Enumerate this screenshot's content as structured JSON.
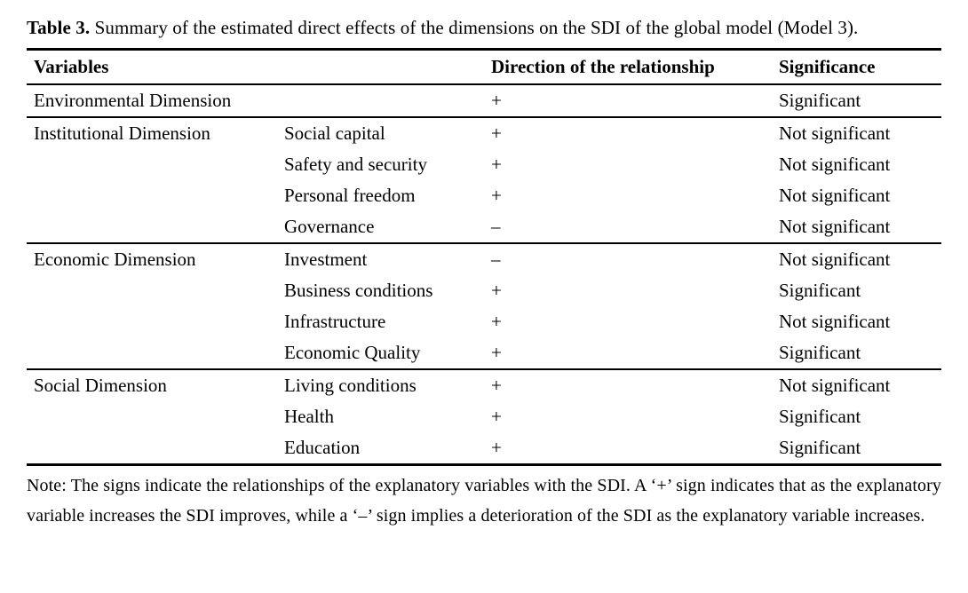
{
  "caption": {
    "label": "Table 3.",
    "text": "Summary of the estimated direct effects of the dimensions on the SDI of the global model (Model 3)."
  },
  "table": {
    "headers": {
      "variables": "Variables",
      "direction": "Direction of the relationship",
      "significance": "Significance"
    },
    "sections": [
      {
        "dimension": "Environmental Dimension",
        "rows": [
          {
            "variable": "",
            "direction": "+",
            "significance": "Significant"
          }
        ]
      },
      {
        "dimension": "Institutional Dimension",
        "rows": [
          {
            "variable": "Social capital",
            "direction": "+",
            "significance": "Not significant"
          },
          {
            "variable": "Safety and security",
            "direction": "+",
            "significance": "Not significant"
          },
          {
            "variable": "Personal freedom",
            "direction": "+",
            "significance": "Not significant"
          },
          {
            "variable": "Governance",
            "direction": "–",
            "significance": "Not significant"
          }
        ]
      },
      {
        "dimension": "Economic Dimension",
        "rows": [
          {
            "variable": "Investment",
            "direction": "–",
            "significance": "Not significant"
          },
          {
            "variable": "Business conditions",
            "direction": "+",
            "significance": "Significant"
          },
          {
            "variable": "Infrastructure",
            "direction": "+",
            "significance": "Not significant"
          },
          {
            "variable": "Economic Quality",
            "direction": "+",
            "significance": "Significant"
          }
        ]
      },
      {
        "dimension": "Social Dimension",
        "rows": [
          {
            "variable": "Living conditions",
            "direction": "+",
            "significance": "Not significant"
          },
          {
            "variable": "Health",
            "direction": "+",
            "significance": "Significant"
          },
          {
            "variable": "Education",
            "direction": "+",
            "significance": "Significant"
          }
        ]
      }
    ]
  },
  "note": "Note: The signs indicate the relationships of the explanatory variables with the SDI. A ‘+’ sign indicates that as the explanatory variable increases the SDI improves, while a ‘–’ sign implies a deterioration of the SDI as the explanatory variable increases."
}
